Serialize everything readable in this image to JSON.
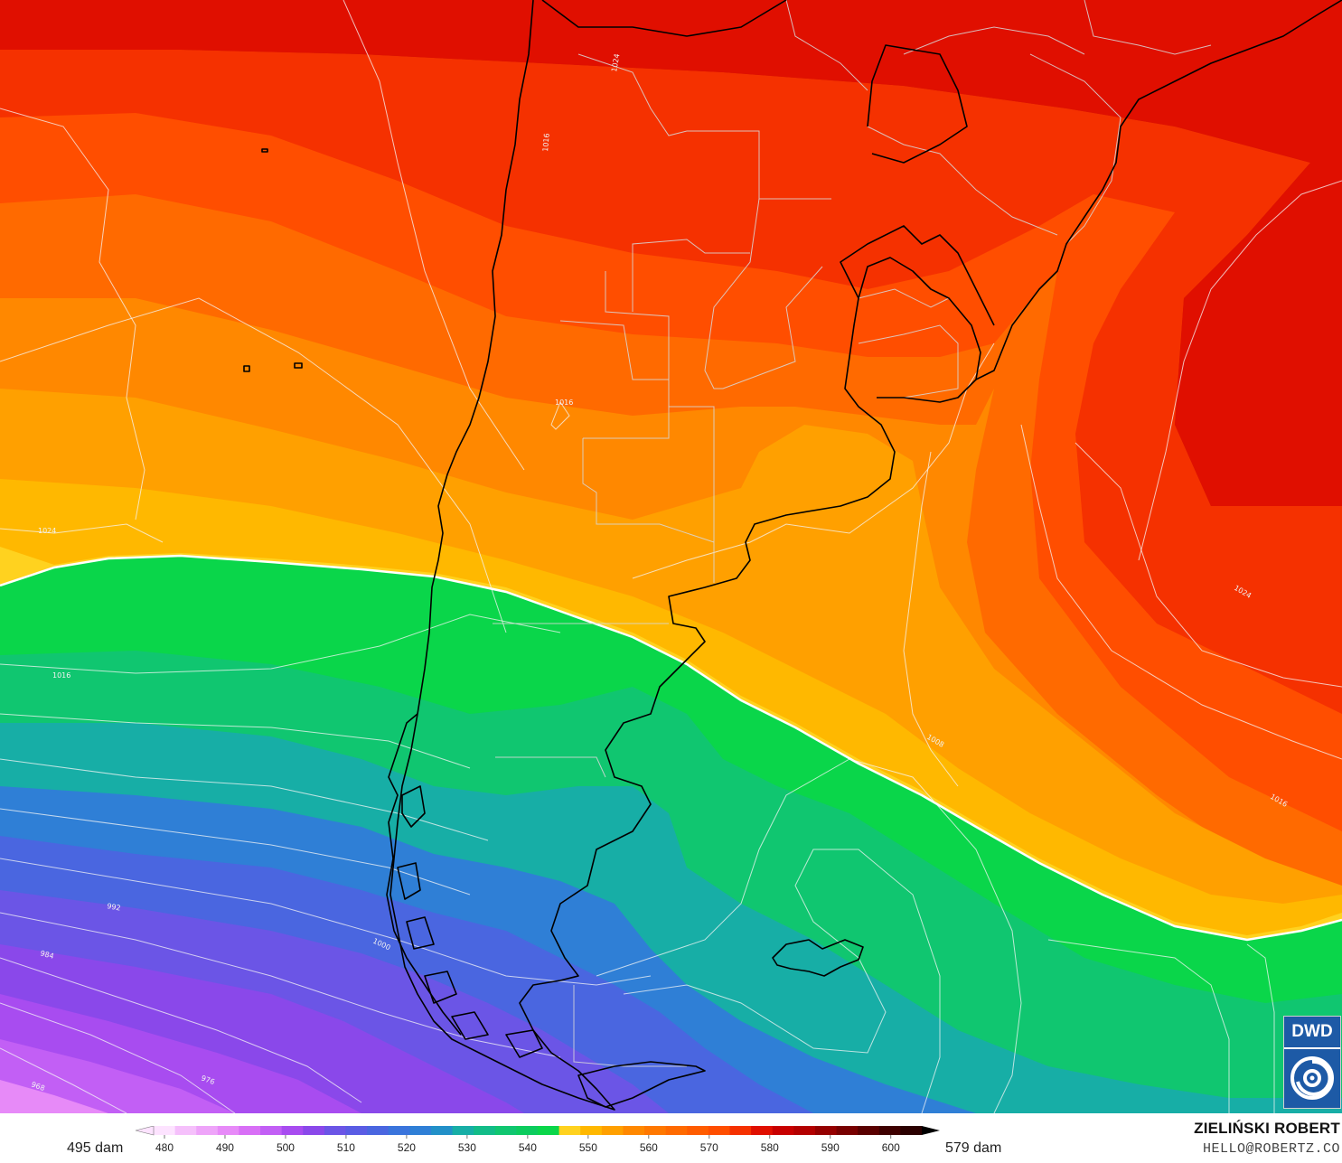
{
  "map": {
    "colors": {
      "c600": "#2b0000",
      "c585": "#b30000",
      "c580": "#e00f00",
      "c575": "#f53100",
      "c570": "#ff4e00",
      "c565": "#ff6a00",
      "c560": "#ff8800",
      "c557": "#ffa000",
      "c555": "#ffb800",
      "c553": "#ffd21f",
      "c550": "#0ad64a",
      "c545": "#10c670",
      "c540": "#17aea6",
      "c535": "#2f7fd6",
      "c530": "#4a66e0",
      "c525": "#6b55e6",
      "c520": "#8a48ea",
      "c515": "#a84cf0",
      "c510": "#c25ff5",
      "c500": "#e78af8"
    },
    "isobar_labels": [
      "1024",
      "1016",
      "1016",
      "1024",
      "1008",
      "1016",
      "1024",
      "1016",
      "992",
      "984",
      "976",
      "968",
      "1000"
    ]
  },
  "legend": {
    "unit_min_label": "495 dam",
    "unit_max_label": "579 dam",
    "ticks": [
      "480",
      "490",
      "500",
      "510",
      "520",
      "530",
      "540",
      "550",
      "560",
      "570",
      "580",
      "590",
      "600"
    ],
    "colors": [
      "#fde3ff",
      "#f5c0fb",
      "#eea4f9",
      "#e78af8",
      "#d86ff6",
      "#c25ff5",
      "#a84cf0",
      "#8a48ea",
      "#6b55e6",
      "#5a5ce4",
      "#4a66e0",
      "#3a74dc",
      "#2f7fd6",
      "#2290c8",
      "#17aea6",
      "#12bc88",
      "#10c670",
      "#0ccc5e",
      "#0ad64a",
      "#ffd21f",
      "#ffb800",
      "#ffa000",
      "#ff8800",
      "#ff7800",
      "#ff6a00",
      "#ff5c00",
      "#ff4e00",
      "#f53100",
      "#e00f00",
      "#c80000",
      "#b30000",
      "#950000",
      "#780000",
      "#5a0000",
      "#3f0000",
      "#2b0000"
    ]
  },
  "footer": {
    "author": "ZIELIŃSKI ROBERT",
    "contact": "HELLO@ROBERTZ.CO"
  },
  "logo": {
    "text": "DWD"
  }
}
